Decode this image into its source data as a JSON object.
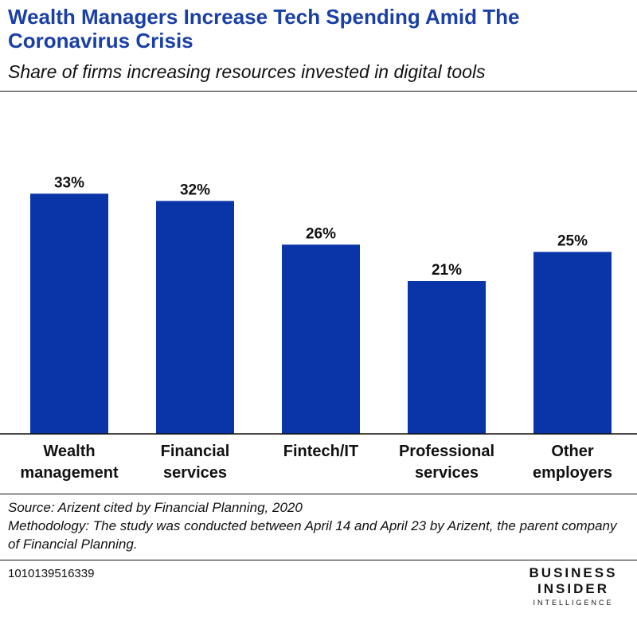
{
  "header": {
    "title": "Wealth Managers Increase Tech Spending Amid The Coronavirus Crisis",
    "subtitle": "Share of firms increasing resources invested in digital tools"
  },
  "chart_data": {
    "type": "bar",
    "title": "Wealth Managers Increase Tech Spending Amid The Coronavirus Crisis",
    "subtitle": "Share of firms increasing resources invested in digital tools",
    "categories": [
      [
        "Wealth",
        "management"
      ],
      [
        "Financial",
        "services"
      ],
      [
        "Fintech/IT"
      ],
      [
        "Professional",
        "services"
      ],
      [
        "Other",
        "employers"
      ]
    ],
    "values": [
      33,
      32,
      26,
      21,
      25
    ],
    "value_labels": [
      "33%",
      "32%",
      "26%",
      "21%",
      "25%"
    ],
    "ylim": [
      0,
      35
    ],
    "bar_color": "#0a35a8",
    "grid": false,
    "legend": "none"
  },
  "footer": {
    "source": "Source: Arizent cited by Financial Planning, 2020",
    "methodology": "Methodology: The study was conducted between April 14 and April 23 by Arizent, the parent company of Financial Planning.",
    "chart_id": "1010139516339",
    "logo": {
      "line1": "BUSINESS",
      "line2": "INSIDER",
      "line3": "INTELLIGENCE"
    }
  }
}
